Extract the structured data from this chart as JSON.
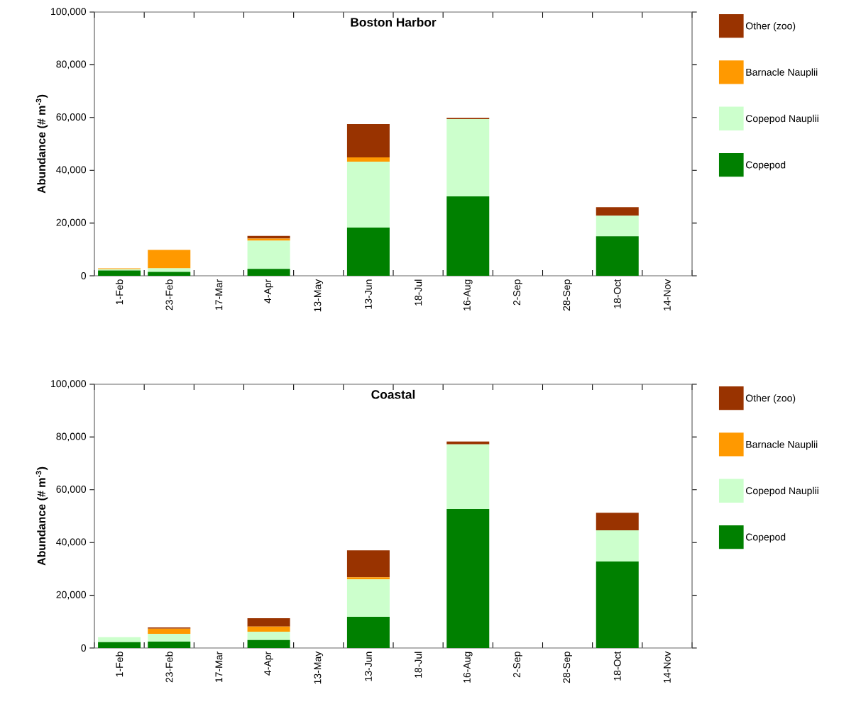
{
  "chart_data": [
    {
      "type": "bar",
      "title": "Boston Harbor",
      "ylabel": "Abundance (# m$^{-3}$)",
      "stacked": true,
      "legend": "right",
      "categories": [
        "1-Feb",
        "23-Feb",
        "17-Mar",
        "4-Apr",
        "13-May",
        "13-Jun",
        "18-Jul",
        "16-Aug",
        "2-Sep",
        "28-Sep",
        "18-Oct",
        "14-Nov"
      ],
      "ylim": [
        0,
        100000
      ],
      "yticks": [
        0,
        {
          "value": 20000,
          "label": "20,000"
        },
        {
          "value": 40000,
          "label": "40,000"
        },
        {
          "value": 60000,
          "label": "60,000"
        },
        {
          "value": 80000,
          "label": "80,000"
        },
        {
          "value": 100000,
          "label": "100,000"
        }
      ],
      "series": [
        {
          "name": "Copepod",
          "color": "#008000",
          "values": [
            2000,
            1500,
            null,
            2600,
            null,
            18300,
            null,
            30100,
            null,
            null,
            15000,
            null
          ]
        },
        {
          "name": "Copepod Nauplii",
          "color": "#ccffcc",
          "values": [
            500,
            1300,
            null,
            10700,
            null,
            25000,
            null,
            29300,
            null,
            null,
            7800,
            null
          ]
        },
        {
          "name": "Barnacle Nauplii",
          "color": "#ff9900",
          "values": [
            300,
            7000,
            null,
            800,
            null,
            1600,
            null,
            0,
            null,
            null,
            0,
            null
          ]
        },
        {
          "name": "Other (zoo)",
          "color": "#993300",
          "values": [
            0,
            0,
            null,
            1000,
            null,
            12600,
            null,
            500,
            null,
            null,
            3200,
            null
          ]
        }
      ]
    },
    {
      "type": "bar",
      "title": "Coastal",
      "ylabel": "Abundance (# m$^{-3}$)",
      "stacked": true,
      "legend": "right",
      "categories": [
        "1-Feb",
        "23-Feb",
        "17-Mar",
        "4-Apr",
        "13-May",
        "13-Jun",
        "18-Jul",
        "16-Aug",
        "2-Sep",
        "28-Sep",
        "18-Oct",
        "14-Nov"
      ],
      "ylim": [
        0,
        100000
      ],
      "yticks": [
        0,
        {
          "value": 20000,
          "label": "20,000"
        },
        {
          "value": 40000,
          "label": "40,000"
        },
        {
          "value": 60000,
          "label": "60,000"
        },
        {
          "value": 80000,
          "label": "80,000"
        },
        {
          "value": 100000,
          "label": "100,000"
        }
      ],
      "series": [
        {
          "name": "Copepod",
          "color": "#008000",
          "values": [
            2200,
            2400,
            null,
            3000,
            null,
            11800,
            null,
            52700,
            null,
            null,
            32800,
            null
          ]
        },
        {
          "name": "Copepod Nauplii",
          "color": "#ccffcc",
          "values": [
            1900,
            3000,
            null,
            3200,
            null,
            14200,
            null,
            24500,
            null,
            null,
            11800,
            null
          ]
        },
        {
          "name": "Barnacle Nauplii",
          "color": "#ff9900",
          "values": [
            0,
            1900,
            null,
            1900,
            null,
            800,
            null,
            0,
            null,
            null,
            0,
            null
          ]
        },
        {
          "name": "Other (zoo)",
          "color": "#993300",
          "values": [
            0,
            500,
            null,
            3200,
            null,
            10200,
            null,
            1100,
            null,
            null,
            6700,
            null
          ]
        }
      ]
    }
  ]
}
